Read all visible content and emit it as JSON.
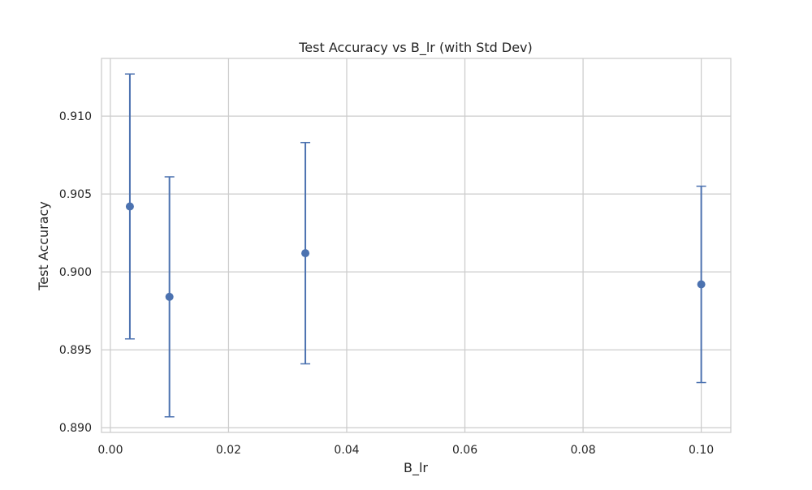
{
  "chart_data": {
    "type": "scatter",
    "title": "Test Accuracy vs B_lr (with Std Dev)",
    "xlabel": "B_lr",
    "ylabel": "Test Accuracy",
    "xlim": [
      -0.0015,
      0.105
    ],
    "ylim": [
      0.8897,
      0.9137
    ],
    "x_ticks": [
      {
        "value": 0.0,
        "label": "0.00"
      },
      {
        "value": 0.02,
        "label": "0.02"
      },
      {
        "value": 0.04,
        "label": "0.04"
      },
      {
        "value": 0.06,
        "label": "0.06"
      },
      {
        "value": 0.08,
        "label": "0.08"
      },
      {
        "value": 0.1,
        "label": "0.10"
      }
    ],
    "y_ticks": [
      {
        "value": 0.89,
        "label": "0.890"
      },
      {
        "value": 0.895,
        "label": "0.895"
      },
      {
        "value": 0.9,
        "label": "0.900"
      },
      {
        "value": 0.905,
        "label": "0.905"
      },
      {
        "value": 0.91,
        "label": "0.910"
      }
    ],
    "grid": true,
    "points": [
      {
        "x": 0.0033,
        "y": 0.9042,
        "err": 0.0085
      },
      {
        "x": 0.01,
        "y": 0.8984,
        "err": 0.0077
      },
      {
        "x": 0.033,
        "y": 0.9012,
        "err": 0.0071
      },
      {
        "x": 0.1,
        "y": 0.8992,
        "err": 0.0063
      }
    ],
    "colors": {
      "series": "#4c72b0",
      "grid": "#cccccc",
      "spine": "#cccccc"
    }
  }
}
